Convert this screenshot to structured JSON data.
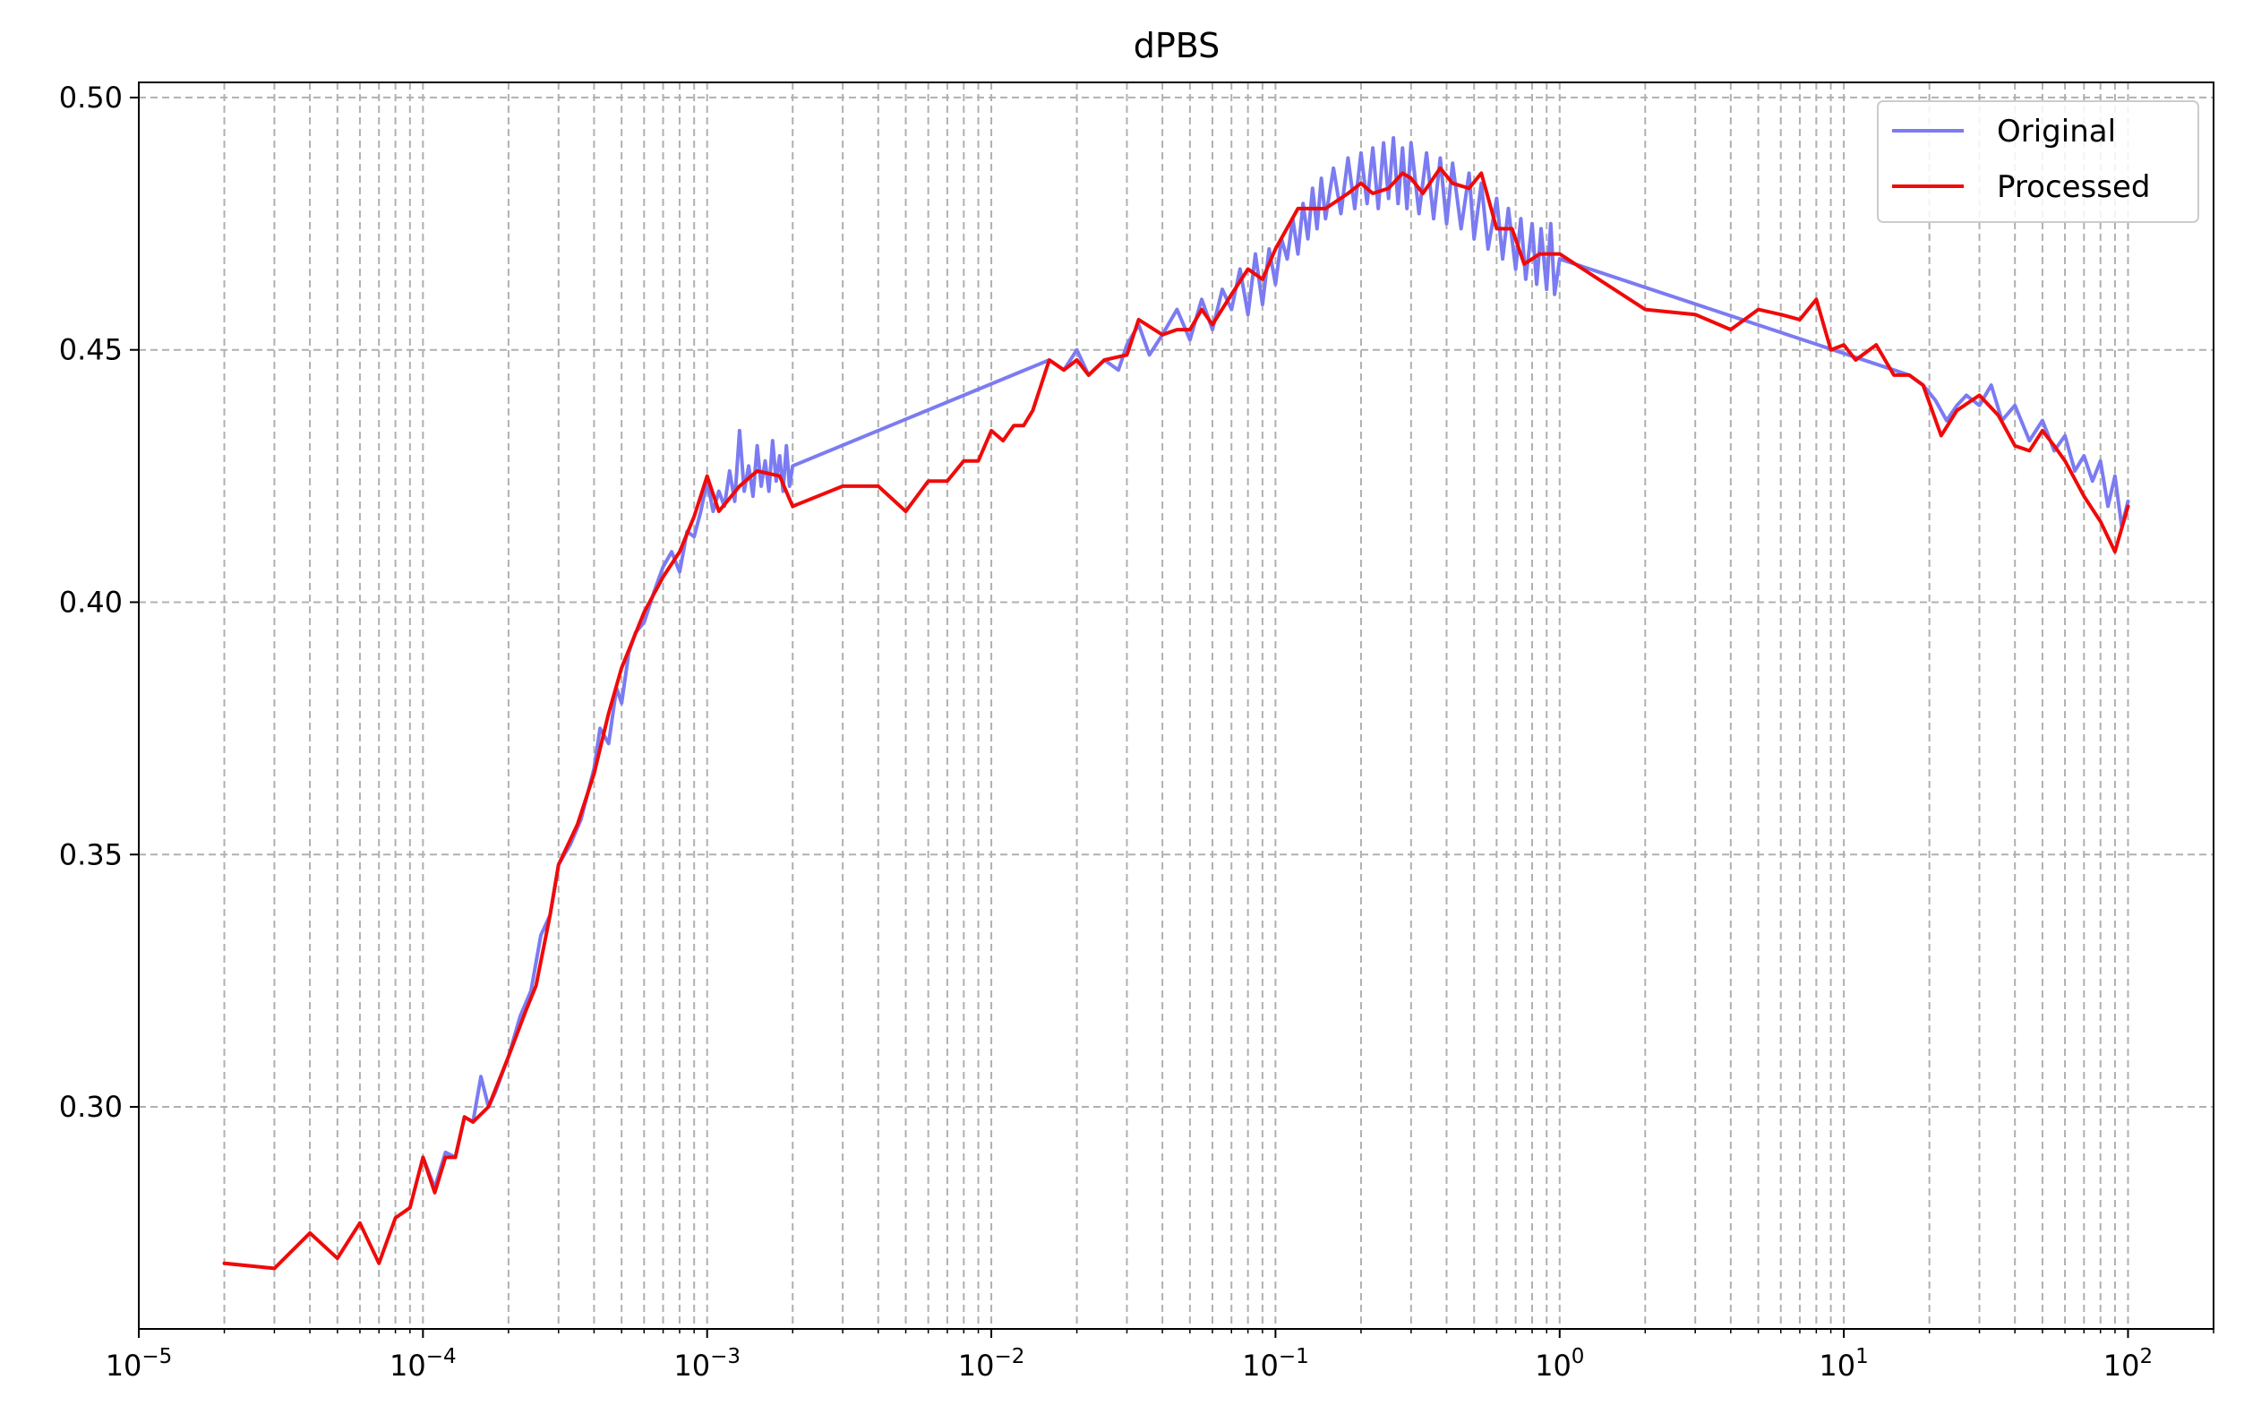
{
  "chart_data": {
    "type": "line",
    "title": "dPBS",
    "xlabel": "",
    "ylabel": "",
    "x_scale": "log",
    "xlim": [
      1e-05,
      200
    ],
    "ylim": [
      0.256,
      0.503
    ],
    "grid": true,
    "grid_minor": true,
    "legend_position": "upper right",
    "x_ticks": [
      {
        "value": 1e-05,
        "base": "10",
        "exp": "−5"
      },
      {
        "value": 0.0001,
        "base": "10",
        "exp": "−4"
      },
      {
        "value": 0.001,
        "base": "10",
        "exp": "−3"
      },
      {
        "value": 0.01,
        "base": "10",
        "exp": "−2"
      },
      {
        "value": 0.1,
        "base": "10",
        "exp": "−1"
      },
      {
        "value": 1,
        "base": "10",
        "exp": "0"
      },
      {
        "value": 10,
        "base": "10",
        "exp": "1"
      },
      {
        "value": 100,
        "base": "10",
        "exp": "2"
      }
    ],
    "y_ticks": [
      {
        "value": 0.3,
        "label": "0.30"
      },
      {
        "value": 0.35,
        "label": "0.35"
      },
      {
        "value": 0.4,
        "label": "0.40"
      },
      {
        "value": 0.45,
        "label": "0.45"
      },
      {
        "value": 0.5,
        "label": "0.50"
      }
    ],
    "series": [
      {
        "name": "Original",
        "color": "#7b7bf2",
        "points": [
          [
            0.0001,
            0.29
          ],
          [
            0.00011,
            0.284
          ],
          [
            0.00012,
            0.291
          ],
          [
            0.00013,
            0.29
          ],
          [
            0.00014,
            0.298
          ],
          [
            0.00015,
            0.297
          ],
          [
            0.00016,
            0.306
          ],
          [
            0.00017,
            0.3
          ],
          [
            0.00018,
            0.303
          ],
          [
            0.0002,
            0.31
          ],
          [
            0.00022,
            0.318
          ],
          [
            0.00024,
            0.323
          ],
          [
            0.00026,
            0.334
          ],
          [
            0.00028,
            0.338
          ],
          [
            0.0003,
            0.348
          ],
          [
            0.00033,
            0.352
          ],
          [
            0.00036,
            0.357
          ],
          [
            0.0004,
            0.367
          ],
          [
            0.00042,
            0.375
          ],
          [
            0.00045,
            0.372
          ],
          [
            0.00048,
            0.383
          ],
          [
            0.0005,
            0.38
          ],
          [
            0.00053,
            0.39
          ],
          [
            0.00056,
            0.394
          ],
          [
            0.0006,
            0.396
          ],
          [
            0.00065,
            0.402
          ],
          [
            0.0007,
            0.407
          ],
          [
            0.00075,
            0.41
          ],
          [
            0.0008,
            0.406
          ],
          [
            0.00085,
            0.414
          ],
          [
            0.0009,
            0.413
          ],
          [
            0.00095,
            0.418
          ],
          [
            0.001,
            0.424
          ],
          [
            0.00105,
            0.418
          ],
          [
            0.0011,
            0.422
          ],
          [
            0.00115,
            0.419
          ],
          [
            0.0012,
            0.426
          ],
          [
            0.00125,
            0.42
          ],
          [
            0.0013,
            0.434
          ],
          [
            0.00135,
            0.422
          ],
          [
            0.0014,
            0.427
          ],
          [
            0.00145,
            0.421
          ],
          [
            0.0015,
            0.431
          ],
          [
            0.00155,
            0.423
          ],
          [
            0.0016,
            0.428
          ],
          [
            0.00165,
            0.422
          ],
          [
            0.0017,
            0.432
          ],
          [
            0.00175,
            0.424
          ],
          [
            0.0018,
            0.429
          ],
          [
            0.00185,
            0.422
          ],
          [
            0.0019,
            0.431
          ],
          [
            0.00195,
            0.423
          ],
          [
            0.002,
            0.427
          ],
          [
            0.016,
            0.448
          ],
          [
            0.018,
            0.446
          ],
          [
            0.02,
            0.45
          ],
          [
            0.022,
            0.445
          ],
          [
            0.025,
            0.448
          ],
          [
            0.028,
            0.446
          ],
          [
            0.03,
            0.451
          ],
          [
            0.033,
            0.455
          ],
          [
            0.036,
            0.449
          ],
          [
            0.04,
            0.453
          ],
          [
            0.045,
            0.458
          ],
          [
            0.05,
            0.452
          ],
          [
            0.055,
            0.46
          ],
          [
            0.06,
            0.454
          ],
          [
            0.065,
            0.462
          ],
          [
            0.07,
            0.458
          ],
          [
            0.075,
            0.466
          ],
          [
            0.08,
            0.457
          ],
          [
            0.085,
            0.469
          ],
          [
            0.09,
            0.459
          ],
          [
            0.095,
            0.47
          ],
          [
            0.1,
            0.463
          ],
          [
            0.105,
            0.472
          ],
          [
            0.11,
            0.468
          ],
          [
            0.115,
            0.476
          ],
          [
            0.12,
            0.469
          ],
          [
            0.125,
            0.479
          ],
          [
            0.13,
            0.472
          ],
          [
            0.135,
            0.482
          ],
          [
            0.14,
            0.474
          ],
          [
            0.145,
            0.484
          ],
          [
            0.15,
            0.476
          ],
          [
            0.16,
            0.486
          ],
          [
            0.17,
            0.477
          ],
          [
            0.18,
            0.488
          ],
          [
            0.19,
            0.478
          ],
          [
            0.2,
            0.489
          ],
          [
            0.21,
            0.479
          ],
          [
            0.22,
            0.49
          ],
          [
            0.23,
            0.478
          ],
          [
            0.24,
            0.491
          ],
          [
            0.25,
            0.48
          ],
          [
            0.26,
            0.492
          ],
          [
            0.27,
            0.479
          ],
          [
            0.28,
            0.49
          ],
          [
            0.29,
            0.478
          ],
          [
            0.3,
            0.491
          ],
          [
            0.32,
            0.477
          ],
          [
            0.34,
            0.489
          ],
          [
            0.36,
            0.476
          ],
          [
            0.38,
            0.488
          ],
          [
            0.4,
            0.475
          ],
          [
            0.42,
            0.487
          ],
          [
            0.45,
            0.474
          ],
          [
            0.48,
            0.485
          ],
          [
            0.5,
            0.472
          ],
          [
            0.53,
            0.483
          ],
          [
            0.56,
            0.47
          ],
          [
            0.6,
            0.48
          ],
          [
            0.63,
            0.468
          ],
          [
            0.66,
            0.478
          ],
          [
            0.7,
            0.466
          ],
          [
            0.73,
            0.476
          ],
          [
            0.76,
            0.464
          ],
          [
            0.8,
            0.475
          ],
          [
            0.83,
            0.463
          ],
          [
            0.86,
            0.474
          ],
          [
            0.9,
            0.462
          ],
          [
            0.93,
            0.475
          ],
          [
            0.96,
            0.461
          ],
          [
            1.0,
            0.468
          ],
          [
            15,
            0.446
          ],
          [
            17,
            0.445
          ],
          [
            19,
            0.443
          ],
          [
            21,
            0.44
          ],
          [
            23,
            0.436
          ],
          [
            25,
            0.439
          ],
          [
            27,
            0.441
          ],
          [
            30,
            0.439
          ],
          [
            33,
            0.443
          ],
          [
            36,
            0.436
          ],
          [
            40,
            0.439
          ],
          [
            45,
            0.432
          ],
          [
            50,
            0.436
          ],
          [
            55,
            0.43
          ],
          [
            60,
            0.433
          ],
          [
            65,
            0.426
          ],
          [
            70,
            0.429
          ],
          [
            75,
            0.424
          ],
          [
            80,
            0.428
          ],
          [
            85,
            0.419
          ],
          [
            90,
            0.425
          ],
          [
            95,
            0.415
          ],
          [
            100,
            0.42
          ]
        ]
      },
      {
        "name": "Processed",
        "color": "#f00a0a",
        "points": [
          [
            2e-05,
            0.269
          ],
          [
            3e-05,
            0.268
          ],
          [
            4e-05,
            0.275
          ],
          [
            5e-05,
            0.27
          ],
          [
            6e-05,
            0.277
          ],
          [
            7e-05,
            0.269
          ],
          [
            8e-05,
            0.278
          ],
          [
            9e-05,
            0.28
          ],
          [
            0.0001,
            0.29
          ],
          [
            0.00011,
            0.283
          ],
          [
            0.00012,
            0.29
          ],
          [
            0.00013,
            0.29
          ],
          [
            0.00014,
            0.298
          ],
          [
            0.00015,
            0.297
          ],
          [
            0.00017,
            0.3
          ],
          [
            0.0002,
            0.31
          ],
          [
            0.00023,
            0.319
          ],
          [
            0.00025,
            0.324
          ],
          [
            0.00028,
            0.338
          ],
          [
            0.0003,
            0.348
          ],
          [
            0.00035,
            0.356
          ],
          [
            0.0004,
            0.366
          ],
          [
            0.00045,
            0.378
          ],
          [
            0.0005,
            0.387
          ],
          [
            0.0006,
            0.398
          ],
          [
            0.0007,
            0.405
          ],
          [
            0.0008,
            0.41
          ],
          [
            0.0009,
            0.417
          ],
          [
            0.001,
            0.425
          ],
          [
            0.0011,
            0.418
          ],
          [
            0.0013,
            0.423
          ],
          [
            0.0015,
            0.426
          ],
          [
            0.0018,
            0.425
          ],
          [
            0.002,
            0.419
          ],
          [
            0.003,
            0.423
          ],
          [
            0.004,
            0.423
          ],
          [
            0.005,
            0.418
          ],
          [
            0.006,
            0.424
          ],
          [
            0.007,
            0.424
          ],
          [
            0.008,
            0.428
          ],
          [
            0.009,
            0.428
          ],
          [
            0.01,
            0.434
          ],
          [
            0.011,
            0.432
          ],
          [
            0.012,
            0.435
          ],
          [
            0.013,
            0.435
          ],
          [
            0.014,
            0.438
          ],
          [
            0.016,
            0.448
          ],
          [
            0.018,
            0.446
          ],
          [
            0.02,
            0.448
          ],
          [
            0.022,
            0.445
          ],
          [
            0.025,
            0.448
          ],
          [
            0.03,
            0.449
          ],
          [
            0.033,
            0.456
          ],
          [
            0.04,
            0.453
          ],
          [
            0.045,
            0.454
          ],
          [
            0.05,
            0.454
          ],
          [
            0.055,
            0.458
          ],
          [
            0.06,
            0.455
          ],
          [
            0.07,
            0.461
          ],
          [
            0.08,
            0.466
          ],
          [
            0.09,
            0.464
          ],
          [
            0.1,
            0.47
          ],
          [
            0.12,
            0.478
          ],
          [
            0.15,
            0.478
          ],
          [
            0.18,
            0.481
          ],
          [
            0.2,
            0.483
          ],
          [
            0.22,
            0.481
          ],
          [
            0.25,
            0.482
          ],
          [
            0.28,
            0.485
          ],
          [
            0.3,
            0.484
          ],
          [
            0.33,
            0.481
          ],
          [
            0.38,
            0.486
          ],
          [
            0.42,
            0.483
          ],
          [
            0.48,
            0.482
          ],
          [
            0.53,
            0.485
          ],
          [
            0.6,
            0.474
          ],
          [
            0.68,
            0.474
          ],
          [
            0.75,
            0.467
          ],
          [
            0.85,
            0.469
          ],
          [
            1.0,
            0.469
          ],
          [
            2,
            0.458
          ],
          [
            3,
            0.457
          ],
          [
            4,
            0.454
          ],
          [
            5,
            0.458
          ],
          [
            6,
            0.457
          ],
          [
            7,
            0.456
          ],
          [
            8,
            0.46
          ],
          [
            9,
            0.45
          ],
          [
            10,
            0.451
          ],
          [
            11,
            0.448
          ],
          [
            13,
            0.451
          ],
          [
            15,
            0.445
          ],
          [
            17,
            0.445
          ],
          [
            19,
            0.443
          ],
          [
            22,
            0.433
          ],
          [
            25,
            0.438
          ],
          [
            30,
            0.441
          ],
          [
            35,
            0.437
          ],
          [
            40,
            0.431
          ],
          [
            45,
            0.43
          ],
          [
            50,
            0.434
          ],
          [
            55,
            0.431
          ],
          [
            60,
            0.428
          ],
          [
            70,
            0.421
          ],
          [
            80,
            0.416
          ],
          [
            90,
            0.41
          ],
          [
            100,
            0.419
          ]
        ]
      }
    ]
  }
}
